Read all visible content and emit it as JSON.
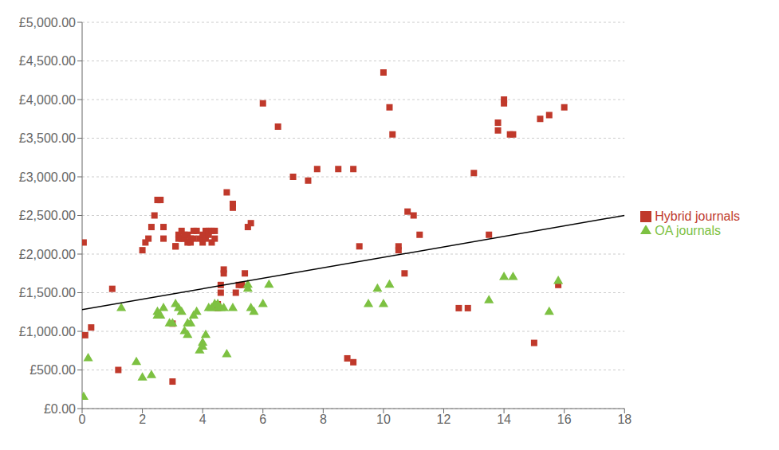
{
  "chart_data": {
    "type": "scatter",
    "xlim": [
      0,
      18
    ],
    "ylim": [
      0,
      5000
    ],
    "xticks": [
      0,
      2,
      4,
      6,
      8,
      10,
      12,
      14,
      16,
      18
    ],
    "yticks": [
      {
        "value": 0,
        "label": "£0.00"
      },
      {
        "value": 500,
        "label": "£500.00"
      },
      {
        "value": 1000,
        "label": "£1,000.00"
      },
      {
        "value": 1500,
        "label": "£1,500.00"
      },
      {
        "value": 2000,
        "label": "£2,000.00"
      },
      {
        "value": 2500,
        "label": "£2,500.00"
      },
      {
        "value": 3000,
        "label": "£3,000.00"
      },
      {
        "value": 3500,
        "label": "£3,500.00"
      },
      {
        "value": 4000,
        "label": "£4,000.00"
      },
      {
        "value": 4500,
        "label": "£4,500.00"
      },
      {
        "value": 5000,
        "label": "£5,000.00"
      }
    ],
    "grid": "y",
    "legend": "right",
    "series": [
      {
        "name": "Hybrid journals",
        "type": "scatter",
        "color": "#C0392B",
        "marker": "square",
        "x": [
          0.05,
          0.1,
          0.3,
          1.0,
          1.2,
          2.0,
          2.1,
          2.2,
          2.3,
          2.4,
          2.5,
          2.6,
          2.7,
          2.7,
          3.0,
          3.0,
          3.1,
          3.1,
          3.2,
          3.2,
          3.3,
          3.3,
          3.4,
          3.4,
          3.5,
          3.5,
          3.6,
          3.6,
          3.7,
          3.7,
          3.8,
          3.9,
          4.0,
          4.0,
          4.0,
          4.1,
          4.1,
          4.2,
          4.2,
          4.3,
          4.3,
          4.4,
          4.4,
          4.5,
          4.5,
          4.5,
          4.6,
          4.6,
          4.7,
          4.7,
          4.8,
          5.0,
          5.0,
          5.1,
          5.2,
          5.3,
          5.4,
          5.5,
          5.6,
          6.0,
          6.5,
          7.0,
          7.5,
          7.8,
          8.5,
          8.8,
          9.0,
          9.0,
          9.2,
          10.0,
          10.2,
          10.3,
          10.5,
          10.5,
          10.7,
          10.8,
          11.0,
          11.2,
          12.5,
          12.8,
          13.0,
          13.5,
          13.8,
          13.8,
          14.0,
          14.0,
          14.2,
          14.3,
          15.0,
          15.2,
          15.5,
          15.8,
          16.0
        ],
        "values": [
          2150,
          950,
          1050,
          1550,
          500,
          2050,
          2150,
          2200,
          2350,
          2500,
          2700,
          2700,
          2200,
          2350,
          350,
          1100,
          2100,
          2100,
          2200,
          2250,
          2200,
          2300,
          2200,
          2250,
          2150,
          2250,
          2200,
          2150,
          2200,
          2300,
          2300,
          2200,
          2150,
          2200,
          2250,
          2200,
          2300,
          2250,
          2300,
          2300,
          2150,
          2200,
          2300,
          1300,
          1350,
          1350,
          1500,
          1600,
          1750,
          1800,
          2800,
          2600,
          2650,
          1500,
          1600,
          1600,
          1750,
          2350,
          2400,
          3950,
          3650,
          3000,
          2950,
          3100,
          3100,
          650,
          3100,
          600,
          2100,
          4350,
          3900,
          3550,
          2050,
          2100,
          1750,
          2550,
          2500,
          2250,
          1300,
          1300,
          3050,
          2250,
          3600,
          3700,
          3950,
          4000,
          3550,
          3550,
          850,
          3750,
          3800,
          1600,
          3900
        ]
      },
      {
        "name": "OA journals",
        "type": "scatter",
        "color": "#7DC142",
        "marker": "triangle",
        "x": [
          0.05,
          0.2,
          1.3,
          1.8,
          2.0,
          2.3,
          2.5,
          2.5,
          2.6,
          2.7,
          2.9,
          3.0,
          3.1,
          3.2,
          3.3,
          3.4,
          3.5,
          3.5,
          3.6,
          3.7,
          3.8,
          3.9,
          4.0,
          4.0,
          4.1,
          4.2,
          4.3,
          4.4,
          4.5,
          4.5,
          4.6,
          4.7,
          4.8,
          5.0,
          5.5,
          5.5,
          5.6,
          5.7,
          6.0,
          6.2,
          9.5,
          9.8,
          10.0,
          10.2,
          13.5,
          14.0,
          14.3,
          15.5,
          15.8
        ],
        "values": [
          150,
          650,
          1300,
          600,
          400,
          430,
          1250,
          1200,
          1200,
          1300,
          1100,
          1100,
          1350,
          1300,
          1250,
          1000,
          950,
          1100,
          1100,
          1200,
          1250,
          750,
          800,
          850,
          950,
          1300,
          1300,
          1350,
          1300,
          1350,
          1300,
          1300,
          700,
          1300,
          1550,
          1600,
          1300,
          1250,
          1350,
          1600,
          1350,
          1550,
          1350,
          1600,
          1400,
          1700,
          1700,
          1250,
          1650
        ]
      },
      {
        "type": "line",
        "color": "#000000",
        "x": [
          0,
          18
        ],
        "values": [
          1280,
          2500
        ]
      }
    ]
  }
}
